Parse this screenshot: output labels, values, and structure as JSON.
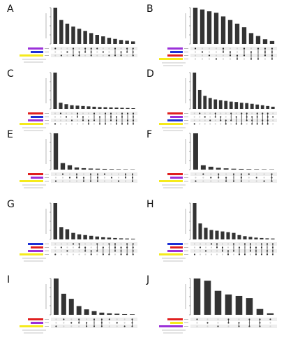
{
  "colors": {
    "bar": "#333333",
    "purple": "#9b30d9",
    "blue": "#1d2fd6",
    "red": "#e01f1f",
    "yellow": "#f5ea1c",
    "dot_on": "#333333",
    "dot_off": "#cfcfcf",
    "stripe": "#eeeeee"
  },
  "chart_data": [
    {
      "type": "bar",
      "label": "A",
      "set_colors": [
        "purple",
        "blue",
        "yellow"
      ],
      "values": [
        1000,
        660,
        560,
        480,
        420,
        360,
        300,
        250,
        210,
        170,
        140,
        110,
        90,
        70
      ],
      "matrix": [
        [
          1,
          0,
          0
        ],
        [
          0,
          0,
          1
        ],
        [
          0,
          1,
          0
        ],
        [
          1,
          0,
          1
        ],
        [
          0,
          1,
          1
        ],
        [
          1,
          1,
          0
        ],
        [
          1,
          1,
          1
        ],
        [
          1,
          0,
          0
        ],
        [
          0,
          1,
          0
        ],
        [
          0,
          0,
          1
        ],
        [
          1,
          0,
          1
        ],
        [
          0,
          1,
          1
        ],
        [
          1,
          1,
          0
        ],
        [
          1,
          1,
          1
        ]
      ]
    },
    {
      "type": "bar",
      "label": "B",
      "set_colors": [
        "purple",
        "blue",
        "red",
        "yellow"
      ],
      "values": [
        1000,
        950,
        900,
        860,
        760,
        660,
        560,
        460,
        300,
        220,
        130,
        80
      ],
      "matrix": [
        [
          1,
          0,
          0,
          0
        ],
        [
          0,
          1,
          0,
          0
        ],
        [
          0,
          0,
          1,
          0
        ],
        [
          0,
          0,
          0,
          1
        ],
        [
          1,
          1,
          0,
          0
        ],
        [
          0,
          1,
          1,
          0
        ],
        [
          0,
          0,
          1,
          1
        ],
        [
          1,
          0,
          1,
          0
        ],
        [
          0,
          1,
          0,
          1
        ],
        [
          1,
          0,
          0,
          1
        ],
        [
          1,
          1,
          1,
          0
        ],
        [
          1,
          1,
          1,
          1
        ]
      ]
    },
    {
      "type": "bar",
      "label": "C",
      "set_colors": [
        "red",
        "blue",
        "purple",
        "yellow"
      ],
      "values": [
        1000,
        170,
        130,
        100,
        90,
        80,
        70,
        60,
        50,
        45,
        40,
        35,
        30,
        25,
        20
      ],
      "matrix": [
        [
          0,
          0,
          0,
          1
        ],
        [
          1,
          0,
          0,
          0
        ],
        [
          0,
          1,
          0,
          0
        ],
        [
          0,
          0,
          1,
          0
        ],
        [
          1,
          1,
          0,
          0
        ],
        [
          0,
          1,
          1,
          0
        ],
        [
          0,
          0,
          1,
          1
        ],
        [
          1,
          0,
          1,
          0
        ],
        [
          0,
          1,
          0,
          1
        ],
        [
          1,
          0,
          0,
          1
        ],
        [
          1,
          1,
          1,
          0
        ],
        [
          0,
          1,
          1,
          1
        ],
        [
          1,
          1,
          0,
          1
        ],
        [
          1,
          0,
          1,
          1
        ],
        [
          1,
          1,
          1,
          1
        ]
      ]
    },
    {
      "type": "bar",
      "label": "D",
      "set_colors": [
        "red",
        "purple",
        "blue",
        "yellow"
      ],
      "values": [
        1000,
        520,
        360,
        300,
        260,
        240,
        220,
        200,
        190,
        170,
        160,
        140,
        120,
        100,
        80,
        60
      ],
      "matrix": [
        [
          0,
          0,
          0,
          1
        ],
        [
          1,
          0,
          0,
          0
        ],
        [
          0,
          1,
          0,
          0
        ],
        [
          0,
          0,
          1,
          0
        ],
        [
          1,
          1,
          0,
          0
        ],
        [
          0,
          1,
          1,
          0
        ],
        [
          0,
          0,
          1,
          1
        ],
        [
          1,
          0,
          1,
          0
        ],
        [
          0,
          1,
          0,
          1
        ],
        [
          1,
          0,
          0,
          1
        ],
        [
          1,
          1,
          1,
          0
        ],
        [
          0,
          1,
          1,
          1
        ],
        [
          1,
          1,
          0,
          1
        ],
        [
          1,
          0,
          1,
          1
        ],
        [
          1,
          1,
          1,
          1
        ],
        [
          0,
          1,
          0,
          0
        ]
      ]
    },
    {
      "type": "bar",
      "label": "E",
      "set_colors": [
        "red",
        "purple",
        "yellow"
      ],
      "values": [
        1000,
        180,
        120,
        60,
        40,
        30,
        25,
        20,
        15,
        12,
        10,
        8
      ],
      "matrix": [
        [
          0,
          0,
          1
        ],
        [
          1,
          0,
          0
        ],
        [
          0,
          1,
          0
        ],
        [
          1,
          1,
          0
        ],
        [
          0,
          1,
          1
        ],
        [
          1,
          0,
          1
        ],
        [
          1,
          1,
          1
        ],
        [
          1,
          0,
          0
        ],
        [
          0,
          1,
          0
        ],
        [
          0,
          0,
          1
        ],
        [
          1,
          1,
          0
        ],
        [
          1,
          1,
          1
        ]
      ]
    },
    {
      "type": "bar",
      "label": "F",
      "set_colors": [
        "red",
        "purple",
        "yellow"
      ],
      "values": [
        1000,
        120,
        80,
        50,
        35,
        25,
        20,
        15,
        12,
        10,
        8
      ],
      "matrix": [
        [
          0,
          0,
          1
        ],
        [
          1,
          0,
          0
        ],
        [
          0,
          1,
          0
        ],
        [
          1,
          1,
          0
        ],
        [
          0,
          1,
          1
        ],
        [
          1,
          0,
          1
        ],
        [
          1,
          1,
          1
        ],
        [
          1,
          0,
          0
        ],
        [
          0,
          1,
          0
        ],
        [
          0,
          0,
          1
        ],
        [
          1,
          1,
          1
        ]
      ]
    },
    {
      "type": "bar",
      "label": "G",
      "set_colors": [
        "blue",
        "red",
        "purple",
        "yellow"
      ],
      "values": [
        1000,
        340,
        280,
        180,
        140,
        120,
        100,
        80,
        60,
        50,
        40,
        30,
        25,
        20
      ],
      "matrix": [
        [
          0,
          0,
          0,
          1
        ],
        [
          0,
          1,
          0,
          0
        ],
        [
          0,
          0,
          1,
          0
        ],
        [
          1,
          0,
          0,
          0
        ],
        [
          1,
          1,
          0,
          0
        ],
        [
          0,
          1,
          1,
          0
        ],
        [
          0,
          0,
          1,
          1
        ],
        [
          1,
          0,
          1,
          0
        ],
        [
          0,
          1,
          0,
          1
        ],
        [
          1,
          0,
          0,
          1
        ],
        [
          1,
          1,
          1,
          0
        ],
        [
          0,
          1,
          1,
          1
        ],
        [
          1,
          1,
          0,
          1
        ],
        [
          1,
          1,
          1,
          1
        ]
      ]
    },
    {
      "type": "bar",
      "label": "H",
      "set_colors": [
        "blue",
        "red",
        "purple",
        "yellow"
      ],
      "values": [
        1000,
        440,
        320,
        260,
        240,
        220,
        200,
        180,
        120,
        90,
        70,
        50,
        40,
        30,
        25
      ],
      "matrix": [
        [
          0,
          0,
          0,
          1
        ],
        [
          0,
          1,
          0,
          0
        ],
        [
          0,
          0,
          1,
          0
        ],
        [
          1,
          0,
          0,
          0
        ],
        [
          1,
          1,
          0,
          0
        ],
        [
          0,
          1,
          1,
          0
        ],
        [
          0,
          0,
          1,
          1
        ],
        [
          1,
          0,
          1,
          0
        ],
        [
          0,
          1,
          0,
          1
        ],
        [
          1,
          0,
          0,
          1
        ],
        [
          1,
          1,
          1,
          0
        ],
        [
          0,
          1,
          1,
          1
        ],
        [
          1,
          1,
          0,
          1
        ],
        [
          1,
          0,
          1,
          1
        ],
        [
          1,
          1,
          1,
          1
        ]
      ]
    },
    {
      "type": "bar",
      "label": "I",
      "set_colors": [
        "red",
        "purple",
        "yellow"
      ],
      "values": [
        1000,
        580,
        440,
        240,
        150,
        100,
        60,
        40,
        30,
        20,
        15
      ],
      "matrix": [
        [
          0,
          0,
          1
        ],
        [
          1,
          0,
          0
        ],
        [
          0,
          1,
          0
        ],
        [
          1,
          1,
          0
        ],
        [
          0,
          1,
          1
        ],
        [
          1,
          0,
          1
        ],
        [
          1,
          1,
          1
        ],
        [
          1,
          0,
          0
        ],
        [
          0,
          1,
          0
        ],
        [
          0,
          0,
          1
        ],
        [
          1,
          1,
          1
        ]
      ]
    },
    {
      "type": "bar",
      "label": "J",
      "set_colors": [
        "red",
        "yellow",
        "purple"
      ],
      "values": [
        1000,
        940,
        660,
        560,
        520,
        460,
        160,
        40
      ],
      "matrix": [
        [
          1,
          0,
          0
        ],
        [
          0,
          1,
          0
        ],
        [
          0,
          0,
          1
        ],
        [
          1,
          1,
          0
        ],
        [
          0,
          1,
          1
        ],
        [
          1,
          0,
          1
        ],
        [
          1,
          1,
          1
        ],
        [
          1,
          0,
          0
        ]
      ]
    }
  ]
}
